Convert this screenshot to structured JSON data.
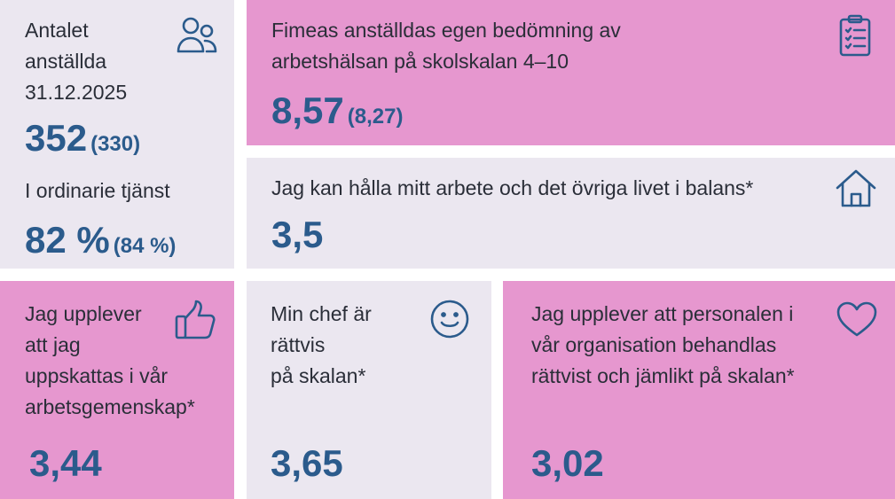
{
  "colors": {
    "lavender": "#ebe7f0",
    "pink": "#e697cf",
    "value_blue": "#2b5b8c",
    "text": "#2a2e38"
  },
  "employees": {
    "label": "Antalet\nanställda\n31.12.2025",
    "value": "352",
    "prev": "(330)",
    "icon": "people-icon",
    "permanent_label": "I ordinarie tjänst",
    "permanent_value": "82 %",
    "permanent_prev": "(84 %)"
  },
  "wellbeing": {
    "label": "Fimeas anställdas egen bedömning av\narbetshälsan på skolskalan 4–10",
    "value": "8,57",
    "prev": "(8,27)",
    "icon": "clipboard-icon"
  },
  "balance": {
    "label": "Jag kan hålla mitt arbete och det övriga livet i balans*",
    "value": "3,5",
    "icon": "home-icon"
  },
  "appreciated": {
    "label": "Jag upplever\natt jag\nuppskattas i vår\narbetsgemenskap*",
    "value": "3,44",
    "icon": "thumbs-up-icon"
  },
  "fair_manager": {
    "label": "Min chef är\nrättvis\npå skalan*",
    "value": "3,65",
    "icon": "smiley-icon"
  },
  "equality": {
    "label": "Jag upplever att personalen i\nvår organisation behandlas\nrättvist och jämlikt på skalan*",
    "value": "3,02",
    "icon": "heart-icon"
  }
}
